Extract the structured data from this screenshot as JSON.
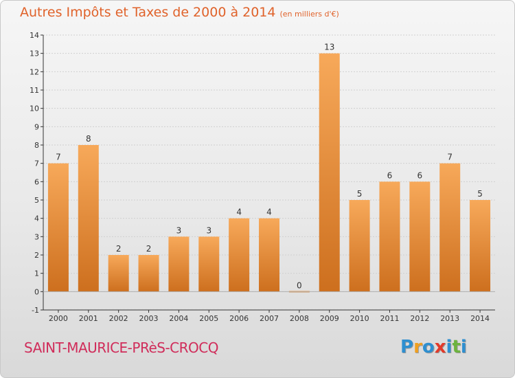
{
  "header": {
    "title": "Autres Impôts et Taxes de 2000 à 2014",
    "unit": "(en milliers d'€)"
  },
  "footer": {
    "commune": "SAINT-MAURICE-PRèS-CROCQ",
    "logo_letters": [
      {
        "ch": "P",
        "color": "#2e8fd0"
      },
      {
        "ch": "r",
        "color": "#f0a020"
      },
      {
        "ch": "o",
        "color": "#2e8fd0"
      },
      {
        "ch": "x",
        "color": "#e23a2a"
      },
      {
        "ch": "i",
        "color": "#2e8fd0"
      },
      {
        "ch": "t",
        "color": "#6cb33e"
      },
      {
        "ch": "i",
        "color": "#2e8fd0"
      }
    ]
  },
  "colors": {
    "bar_top": "#f7a95a",
    "bar_bottom": "#cd6f1e",
    "axis": "#333333",
    "grid": "#cfcfcf",
    "text": "#333333"
  },
  "chart_data": {
    "type": "bar",
    "title": "Autres Impôts et Taxes de 2000 à 2014",
    "xlabel": "",
    "ylabel": "",
    "ylim": [
      -1,
      14
    ],
    "yticks": [
      -1,
      0,
      1,
      2,
      3,
      4,
      5,
      6,
      7,
      8,
      9,
      10,
      11,
      12,
      13,
      14
    ],
    "grid": true,
    "categories": [
      "2000",
      "2001",
      "2002",
      "2003",
      "2004",
      "2005",
      "2006",
      "2007",
      "2008",
      "2009",
      "2010",
      "2011",
      "2012",
      "2013",
      "2014"
    ],
    "values": [
      7,
      8,
      2,
      2,
      3,
      3,
      4,
      4,
      0,
      13,
      5,
      6,
      6,
      7,
      5
    ],
    "data_labels": [
      "7",
      "8",
      "2",
      "2",
      "3",
      "3",
      "4",
      "4",
      "0",
      "13",
      "5",
      "6",
      "6",
      "7",
      "5"
    ]
  }
}
